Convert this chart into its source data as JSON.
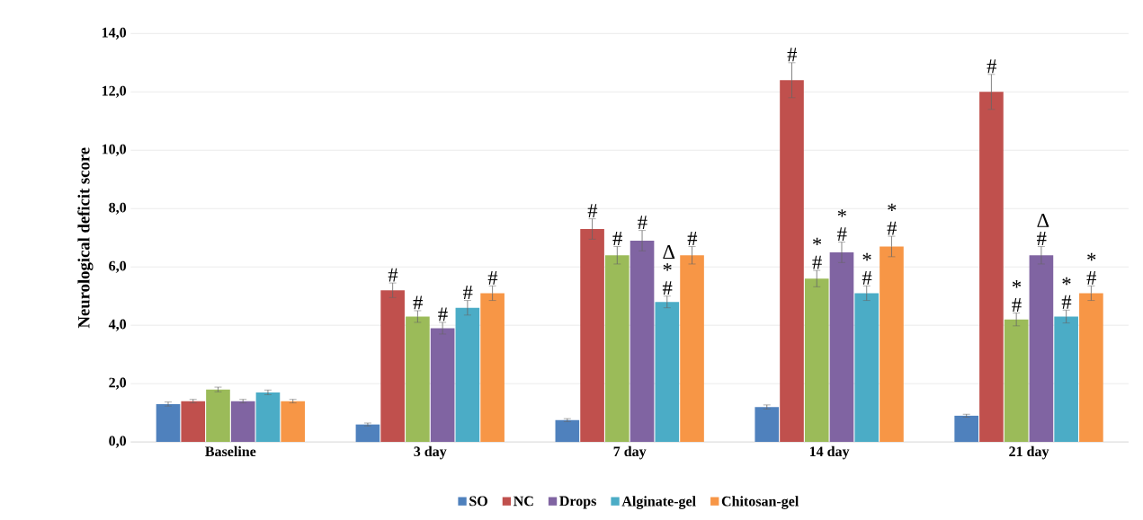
{
  "chart_data": {
    "type": "bar",
    "ylabel": "Neurological deficit score",
    "categories": [
      "Baseline",
      "3 day",
      "7 day",
      "14 day",
      "21 day"
    ],
    "series": [
      {
        "name": "SO",
        "color": "#4f81bd",
        "values": [
          1.3,
          0.6,
          0.75,
          1.2,
          0.9
        ],
        "errors": [
          0.07,
          0.05,
          0.05,
          0.07,
          0.05
        ],
        "value_labels": [
          null,
          null,
          null,
          null,
          null
        ]
      },
      {
        "name": "NC",
        "color": "#c0504d",
        "values": [
          1.4,
          5.2,
          7.3,
          12.4,
          12.0
        ],
        "errors": [
          0.06,
          0.25,
          0.35,
          0.6,
          0.6
        ],
        "value_labels": [
          null,
          "#",
          "#",
          "#",
          "#"
        ]
      },
      {
        "color": "#9bbb59",
        "values": [
          1.8,
          4.3,
          6.4,
          5.6,
          4.2
        ],
        "errors": [
          0.08,
          0.2,
          0.3,
          0.28,
          0.22
        ],
        "value_labels": [
          null,
          "#",
          "#",
          "* #",
          "* #"
        ]
      },
      {
        "name": "Drops",
        "color": "#8064a2",
        "values": [
          1.4,
          3.9,
          6.9,
          6.5,
          6.4
        ],
        "errors": [
          0.06,
          0.2,
          0.35,
          0.35,
          0.3
        ],
        "value_labels": [
          null,
          "#",
          "#",
          "* #",
          "Δ #"
        ]
      },
      {
        "name": "Alginate-gel",
        "color": "#4bacc6",
        "values": [
          1.7,
          4.6,
          4.8,
          5.1,
          4.3
        ],
        "errors": [
          0.08,
          0.25,
          0.2,
          0.25,
          0.22
        ],
        "value_labels": [
          null,
          "#",
          "Δ * #",
          "* #",
          "* #"
        ]
      },
      {
        "name": "Chitosan-gel",
        "color": "#f79646",
        "values": [
          1.4,
          5.1,
          6.4,
          6.7,
          5.1
        ],
        "errors": [
          0.06,
          0.25,
          0.3,
          0.35,
          0.25
        ],
        "value_labels": [
          null,
          "#",
          "#",
          "* #",
          "* #"
        ]
      }
    ],
    "ylim": [
      0,
      14
    ],
    "yticks": [
      {
        "value": 0,
        "label": "0,0"
      },
      {
        "value": 2,
        "label": "2,0"
      },
      {
        "value": 4,
        "label": "4,0"
      },
      {
        "value": 6,
        "label": "6,0"
      },
      {
        "value": 8,
        "label": "8,0"
      },
      {
        "value": 10,
        "label": "10,0"
      },
      {
        "value": 12,
        "label": "12,0"
      },
      {
        "value": 14,
        "label": "14,0"
      }
    ],
    "grid": "y",
    "legend": "bottom"
  }
}
